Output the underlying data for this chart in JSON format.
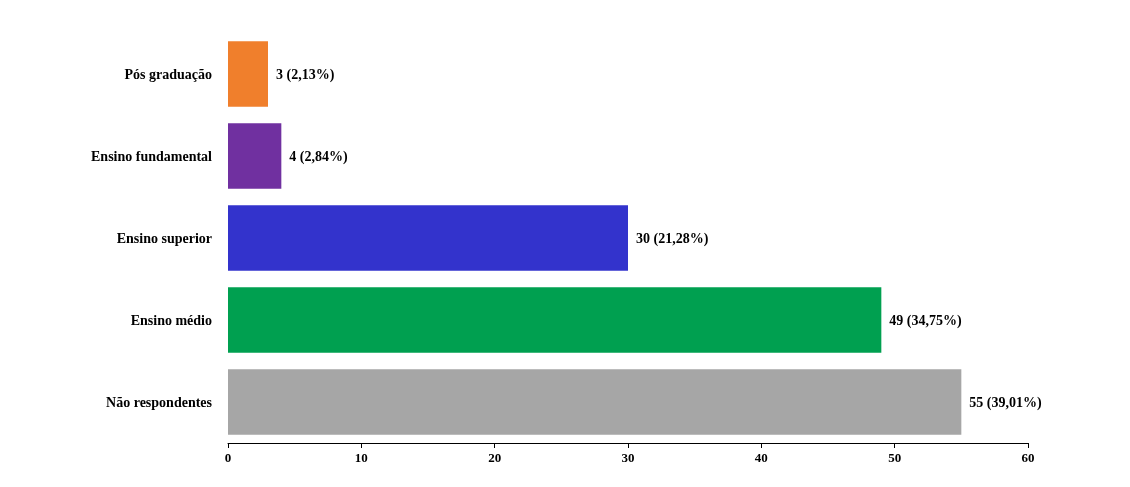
{
  "chart_data": {
    "type": "bar",
    "orientation": "horizontal",
    "categories": [
      "Pós graduação",
      "Ensino fundamental",
      "Ensino superior",
      "Ensino médio",
      "Não respondentes"
    ],
    "values": [
      3,
      4,
      30,
      49,
      55
    ],
    "colors": [
      "#f07f2c",
      "#7030a0",
      "#3333cc",
      "#00a050",
      "#a6a6a6"
    ],
    "value_labels": [
      "3 (2,13%)",
      "4 (2,84%)",
      "30 (21,28%)",
      "49 (34,75%)",
      "55 (39,01%)"
    ],
    "xlim": [
      0,
      60
    ],
    "xticks": [
      0,
      10,
      20,
      30,
      40,
      50,
      60
    ],
    "grid": false
  }
}
